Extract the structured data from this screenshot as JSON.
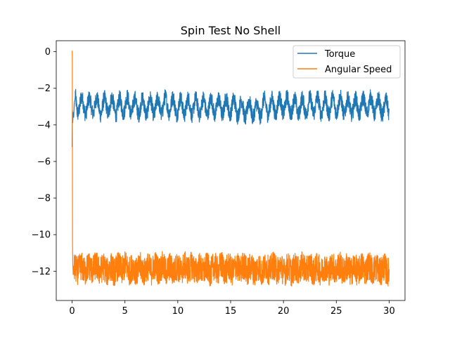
{
  "chart_data": {
    "type": "line",
    "title": "Spin Test No Shell",
    "xlabel": "",
    "ylabel": "",
    "xlim": [
      -1.5,
      31.5
    ],
    "ylim": [
      -13.6,
      0.6
    ],
    "xticks": [
      0,
      5,
      10,
      15,
      20,
      25,
      30
    ],
    "xtick_labels": [
      "0",
      "5",
      "10",
      "15",
      "20",
      "25",
      "30"
    ],
    "yticks": [
      0,
      -2,
      -4,
      -6,
      -8,
      -10,
      -12
    ],
    "ytick_labels": [
      "0",
      "−2",
      "−4",
      "−6",
      "−8",
      "−10",
      "−12"
    ],
    "grid": false,
    "legend_position": "top-right",
    "series": [
      {
        "name": "Torque",
        "color": "#1f77b4",
        "x": [
          0,
          0.03,
          0.06,
          0.1,
          0.15,
          0.2,
          0.3,
          0.4,
          0.5,
          0.75,
          1,
          1.5,
          2,
          2.5,
          3,
          3.5,
          4,
          4.5,
          5,
          6,
          7,
          8,
          9,
          10,
          11,
          12,
          13,
          14,
          15,
          16,
          16.5,
          17,
          17.5,
          18,
          18.5,
          19,
          20,
          21,
          22,
          23,
          24,
          25,
          26,
          27,
          28,
          29,
          30
        ],
        "y": [
          -5.2,
          -3.2,
          -3.9,
          -3.3,
          -3.6,
          -2.9,
          -2.5,
          -2.7,
          -2.9,
          -3.0,
          -2.9,
          -3.0,
          -2.9,
          -3.0,
          -3.0,
          -2.9,
          -3.0,
          -3.0,
          -2.9,
          -3.0,
          -3.0,
          -3.0,
          -2.9,
          -3.0,
          -3.0,
          -3.0,
          -3.0,
          -3.0,
          -3.0,
          -3.1,
          -3.2,
          -3.1,
          -3.3,
          -3.0,
          -3.0,
          -3.0,
          -2.9,
          -3.0,
          -3.0,
          -2.9,
          -3.0,
          -2.9,
          -3.0,
          -3.0,
          -2.9,
          -3.0,
          -3.1
        ],
        "band_min": -4.0,
        "band_max": -2.0
      },
      {
        "name": "Angular Speed",
        "color": "#ff7f0e",
        "x": [
          0,
          0.02,
          0.04,
          0.06,
          0.1,
          0.15,
          0.2,
          0.3,
          0.5,
          1,
          2,
          3,
          4,
          5,
          6,
          7,
          8,
          9,
          10,
          11,
          12,
          13,
          14,
          15,
          16,
          17,
          18,
          19,
          20,
          21,
          22,
          23,
          24,
          25,
          26,
          27,
          28,
          29,
          30
        ],
        "y": [
          0.05,
          -0.1,
          -10.4,
          -11.5,
          -12.2,
          -11.8,
          -12.0,
          -11.9,
          -11.8,
          -11.9,
          -11.8,
          -11.9,
          -11.9,
          -11.8,
          -11.9,
          -11.9,
          -11.8,
          -11.9,
          -11.9,
          -11.8,
          -11.9,
          -11.9,
          -11.8,
          -11.9,
          -11.8,
          -11.9,
          -11.9,
          -11.8,
          -11.9,
          -11.9,
          -11.8,
          -11.9,
          -11.9,
          -11.8,
          -11.9,
          -11.9,
          -11.8,
          -11.9,
          -11.9
        ],
        "band_min": -13.1,
        "band_max": -10.8
      }
    ]
  }
}
